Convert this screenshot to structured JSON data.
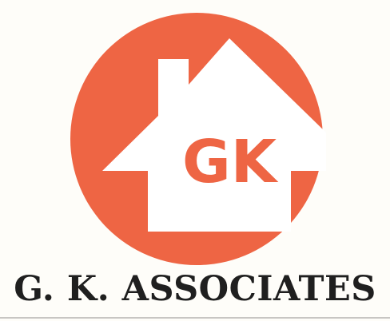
{
  "logo": {
    "monogram": "GK",
    "watermark": "G. K. ASSOCIATES",
    "colors": {
      "circle": "#ee6544",
      "house": "#ffffff",
      "monogram": "#ee6544",
      "background": "#fefdf9"
    }
  },
  "company": {
    "name": "G. K. ASSOCIATES"
  }
}
